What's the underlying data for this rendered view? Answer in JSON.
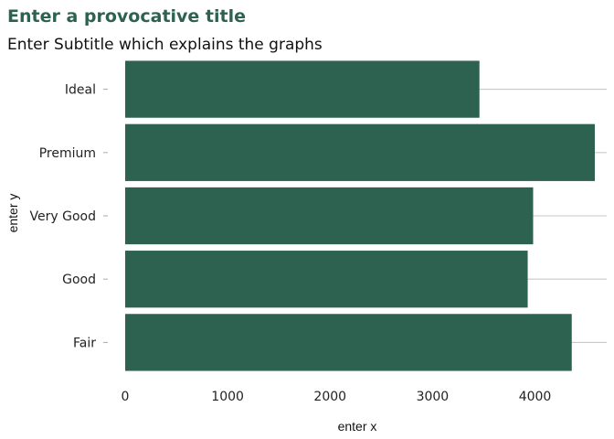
{
  "chart_data": {
    "type": "bar",
    "orientation": "horizontal",
    "title": "Enter a provocative title",
    "subtitle": "Enter Subtitle which explains the graphs",
    "xlabel": "enter x",
    "ylabel": "enter y",
    "categories": [
      "Ideal",
      "Premium",
      "Very Good",
      "Good",
      "Fair"
    ],
    "values": [
      3458,
      4584,
      3982,
      3929,
      4359
    ],
    "xlim": [
      0,
      4700
    ],
    "x_ticks": [
      0,
      1000,
      2000,
      3000,
      4000
    ],
    "grid": "horizontal-major",
    "legend": "none",
    "colors": {
      "bar": "#2e6250",
      "title": "#2e6250",
      "grid": "#c8c8c8"
    }
  }
}
